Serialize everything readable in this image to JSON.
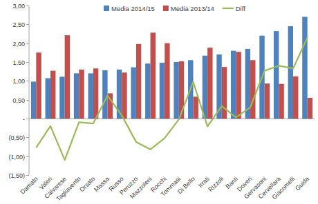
{
  "chart_data": {
    "type": "bar",
    "categories": [
      "Damato",
      "Valeri",
      "Calvarese",
      "Tagliavento",
      "Orsato",
      "Massa",
      "Russo",
      "Peruzzo",
      "Mazzoleni",
      "Rocchi",
      "Tommasi",
      "Di Bello",
      "Irrati",
      "Rizzoli",
      "Banti",
      "Doveri",
      "Gervasoni",
      "Cervellara",
      "Giacomelli",
      "Guida"
    ],
    "series": [
      {
        "name": "Media 2014/15",
        "color": "#4f81bd",
        "type": "bar",
        "values": [
          0.98,
          1.07,
          1.11,
          1.2,
          1.2,
          1.28,
          1.3,
          1.36,
          1.46,
          1.48,
          1.5,
          1.55,
          1.67,
          1.7,
          1.8,
          1.85,
          2.2,
          2.32,
          2.45,
          2.7
        ]
      },
      {
        "name": "Media 2013/14",
        "color": "#c0504d",
        "type": "bar",
        "values": [
          1.75,
          1.27,
          2.21,
          1.3,
          1.33,
          0.67,
          1.22,
          1.98,
          2.28,
          2.0,
          1.52,
          0.58,
          1.88,
          1.37,
          1.77,
          1.55,
          0.93,
          0.92,
          1.12,
          0.55
        ]
      },
      {
        "name": "Diff",
        "color": "#9bbb59",
        "type": "line",
        "values": [
          -0.77,
          -0.2,
          -1.1,
          -0.1,
          -0.13,
          0.61,
          0.08,
          -0.62,
          -0.82,
          -0.52,
          -0.02,
          0.97,
          -0.21,
          0.33,
          0.03,
          0.3,
          1.27,
          1.4,
          1.33,
          2.15
        ]
      }
    ],
    "ylim": [
      -1.5,
      3.0
    ],
    "yticks": [
      {
        "value": -1.5,
        "label": "(1,50)"
      },
      {
        "value": -1.0,
        "label": "(1,00)"
      },
      {
        "value": -0.5,
        "label": "(0,50)"
      },
      {
        "value": 0,
        "label": "-"
      },
      {
        "value": 0.5,
        "label": "0,50"
      },
      {
        "value": 1.0,
        "label": "1,00"
      },
      {
        "value": 1.5,
        "label": "1,50"
      },
      {
        "value": 2.0,
        "label": "2,00"
      },
      {
        "value": 2.5,
        "label": "2,50"
      },
      {
        "value": 3.0,
        "label": "3,00"
      }
    ],
    "grid": false,
    "legend": "top"
  }
}
